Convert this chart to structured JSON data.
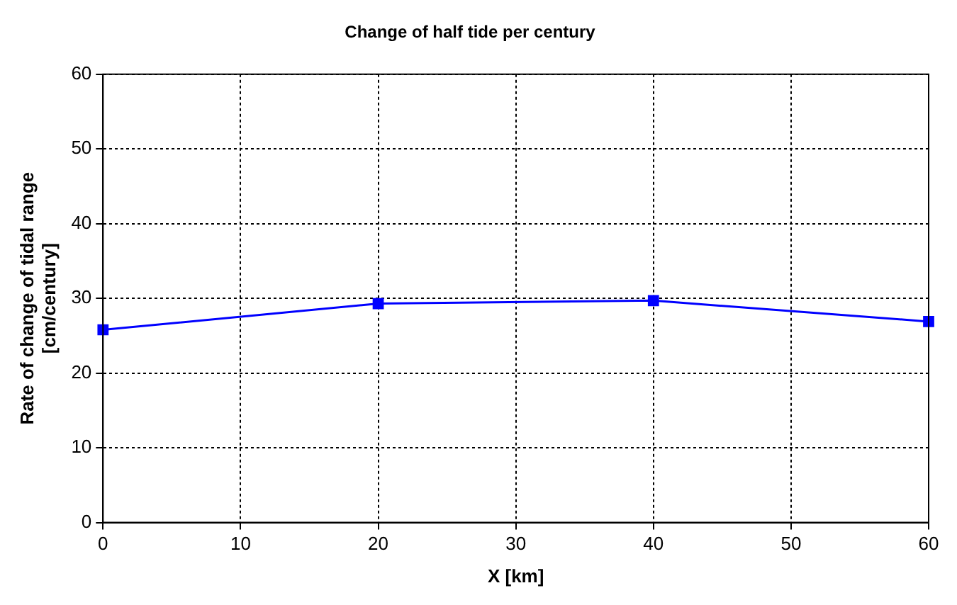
{
  "chart_data": {
    "type": "line",
    "title": "Change of half tide per century",
    "xlabel": "X [km]",
    "ylabel": "Rate of change of tidal range\n[cm/century]",
    "x": [
      0,
      20,
      40,
      60
    ],
    "series": [
      {
        "color": "#0000ff",
        "values": [
          25.8,
          29.3,
          29.7,
          26.9
        ]
      }
    ],
    "xlim": [
      0,
      60
    ],
    "xticks": [
      0,
      10,
      20,
      30,
      40,
      50,
      60
    ],
    "ylim": [
      0,
      60
    ],
    "yticks": [
      0,
      10,
      20,
      30,
      40,
      50,
      60
    ],
    "grid": true,
    "legend": false,
    "marker": "square",
    "line_style": "solid"
  }
}
